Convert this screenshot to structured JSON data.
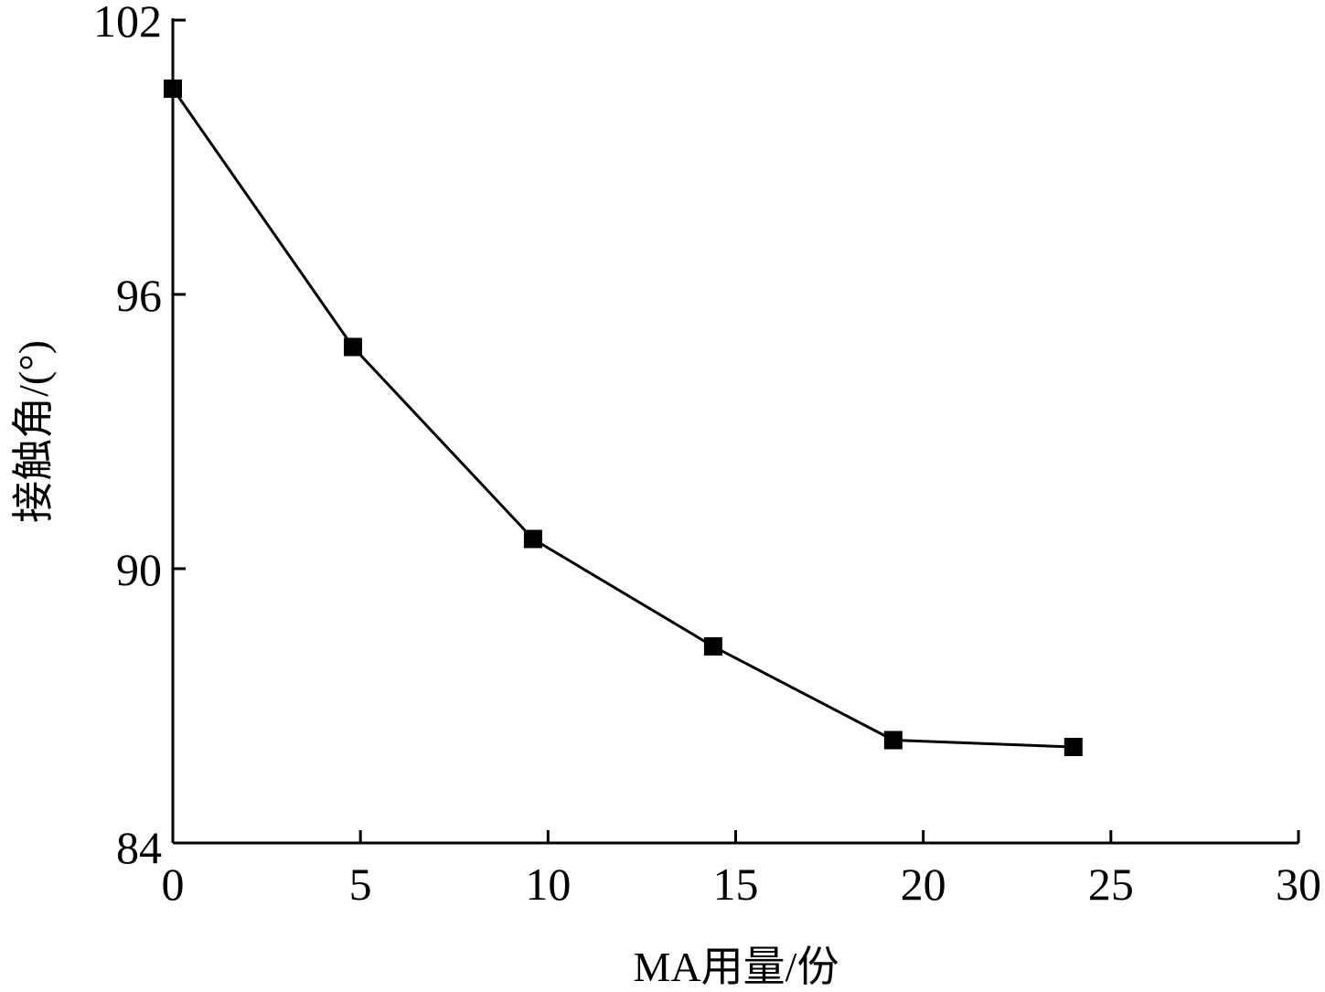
{
  "chart_data": {
    "type": "line",
    "xlabel": "MA用量/份",
    "ylabel": "接触角/(°)",
    "xlim": [
      0,
      30
    ],
    "ylim": [
      84,
      102
    ],
    "xticks": [
      0,
      5,
      10,
      15,
      20,
      25,
      30
    ],
    "yticks": [
      84,
      90,
      96,
      102
    ],
    "grid": false,
    "legend": "none",
    "series": [
      {
        "marker": "square",
        "color": "#000000",
        "x": [
          0,
          4.8,
          9.6,
          14.4,
          19.2,
          24
        ],
        "y": [
          100.5,
          94.85,
          90.65,
          88.3,
          86.25,
          86.1
        ]
      }
    ]
  }
}
